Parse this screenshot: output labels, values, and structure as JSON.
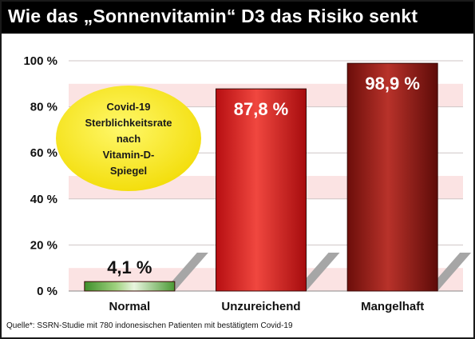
{
  "title": "Wie das „Sonnenvitamin“ D3 das Risiko senkt",
  "source": "Quelle*: SSRN-Studie mit 780 indonesischen Patienten mit bestätigtem Covid-19",
  "bubble": {
    "lines": [
      "Covid-19",
      "Sterblichkeitsrate",
      "nach",
      "Vitamin-D-",
      "Spiegel"
    ],
    "color": "#f7e615"
  },
  "chart_data": {
    "type": "bar",
    "categories": [
      "Normal",
      "Unzureichend",
      "Mangelhaft"
    ],
    "values": [
      4.1,
      87.8,
      98.9
    ],
    "value_labels": [
      "4,1 %",
      "87,8 %",
      "98,9 %"
    ],
    "yticks": [
      "0 %",
      "20 %",
      "40 %",
      "60 %",
      "80 %",
      "100 %"
    ],
    "ylim": [
      0,
      100
    ],
    "grid": true,
    "colors": [
      "#6fb84a",
      "#d01818",
      "#8e1410"
    ],
    "band_color": "#fbe3e3"
  }
}
